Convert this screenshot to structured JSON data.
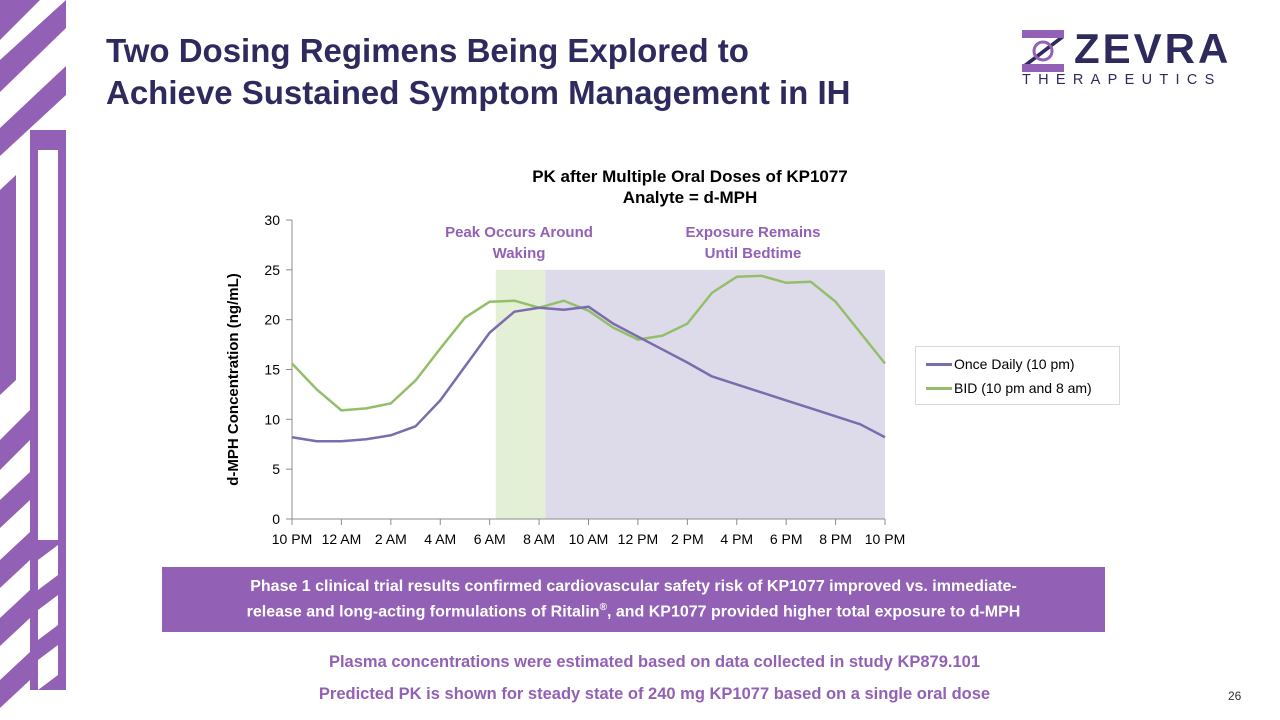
{
  "slide": {
    "title_line1": "Two Dosing Regimens Being Explored to",
    "title_line2": "Achieve Sustained Symptom Management in IH",
    "page_number": "26"
  },
  "logo": {
    "name": "ZEVRA",
    "subtitle": "THERAPEUTICS"
  },
  "colors": {
    "title": "#2e2a5e",
    "accent_purple": "#9260b4",
    "series_once_daily": "#7b6cae",
    "series_bid": "#93bf6a",
    "shade_green": "#e4f0d6",
    "shade_purple": "#dddbea"
  },
  "chart_data": {
    "type": "line",
    "title_line1": "PK after Multiple Oral Doses of KP1077",
    "title_line2": "Analyte = d-MPH",
    "ylabel": "d-MPH Concentration (ng/mL)",
    "xlabel": "",
    "ylim": [
      0,
      30
    ],
    "y_ticks": [
      "0",
      "5",
      "10",
      "15",
      "20",
      "25",
      "30"
    ],
    "x_tick_labels": [
      "10 PM",
      "12 AM",
      "2 AM",
      "4 AM",
      "6 AM",
      "8 AM",
      "10 AM",
      "12 PM",
      "2 PM",
      "4 PM",
      "6 PM",
      "8 PM",
      "10 PM"
    ],
    "x_hours": [
      0,
      1,
      2,
      3,
      4,
      5,
      6,
      7,
      8,
      9,
      10,
      11,
      12,
      13,
      14,
      15,
      16,
      17,
      18,
      19,
      20,
      21,
      22,
      23,
      24
    ],
    "series": [
      {
        "name": "Once Daily (10 pm)",
        "values": [
          8.2,
          7.8,
          7.8,
          8.0,
          8.4,
          9.3,
          11.9,
          15.3,
          18.7,
          20.8,
          21.2,
          21.0,
          21.3,
          19.6,
          18.3,
          17.0,
          15.7,
          14.3,
          13.5,
          12.7,
          11.9,
          11.1,
          10.3,
          9.5,
          8.2
        ]
      },
      {
        "name": "BID (10 pm and 8 am)",
        "values": [
          15.6,
          13.0,
          10.9,
          11.1,
          11.6,
          13.9,
          17.1,
          20.2,
          21.8,
          21.9,
          21.2,
          21.9,
          20.9,
          19.2,
          18.0,
          18.4,
          19.6,
          22.7,
          24.3,
          24.4,
          23.7,
          23.8,
          21.8,
          18.7,
          15.6
        ]
      }
    ],
    "shaded_regions": [
      {
        "label": "Peak Occurs Around Waking",
        "label_line1": "Peak  Occurs  Around",
        "label_line2": "Waking",
        "x_start": 8.25,
        "x_end": 10.25,
        "y_top": 25,
        "color": "#e4f0d6"
      },
      {
        "label": "Exposure Remains Until Bedtime",
        "label_line1": "Exposure  Remains",
        "label_line2": "Until  Bedtime",
        "x_start": 10.25,
        "x_end": 24,
        "y_top": 25,
        "color": "#dddbea"
      }
    ],
    "grid": false,
    "legend_position": "right"
  },
  "banner": {
    "line1": "Phase 1 clinical trial results confirmed cardiovascular safety risk of KP1077 improved vs. immediate-",
    "line2_pre": "release and long-acting formulations of Ritalin",
    "line2_reg": "®",
    "line2_post": ", and KP1077 provided higher total exposure to d-MPH"
  },
  "notes": {
    "line1": "Plasma concentrations were estimated based on data collected in study KP879.101",
    "line2": "Predicted PK is shown for steady state of 240 mg KP1077 based on a single oral dose"
  }
}
